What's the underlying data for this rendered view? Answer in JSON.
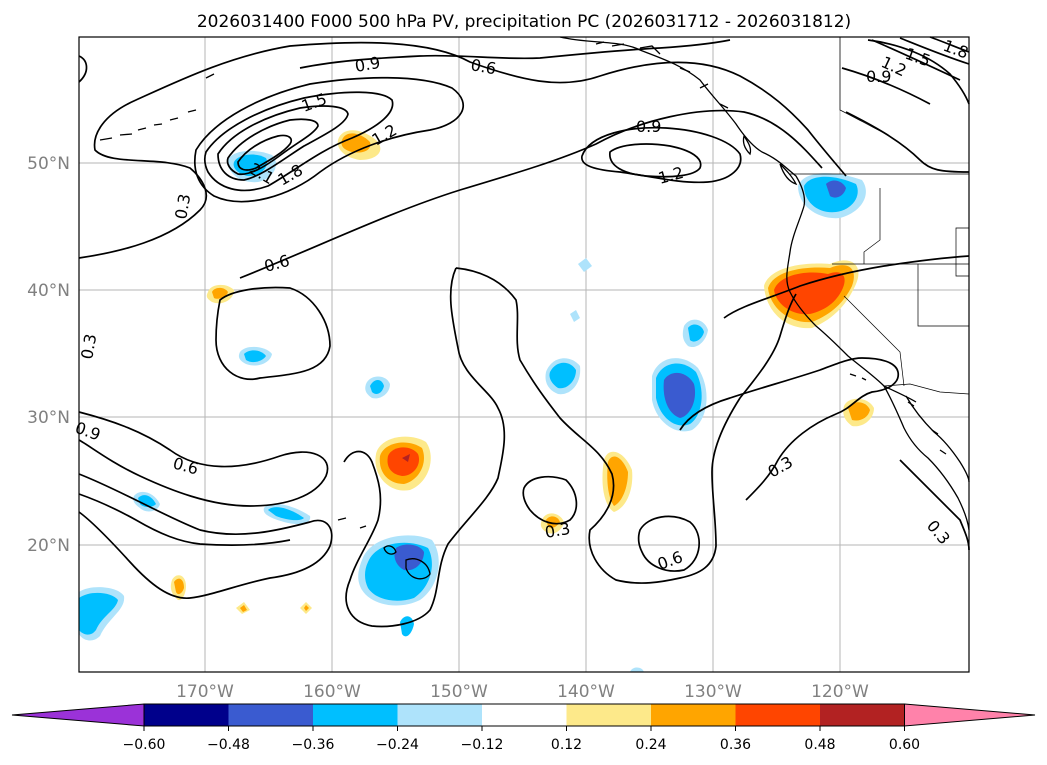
{
  "map": {
    "title": "2026031400 F000 500 hPa PV, precipitation PC (2026031712 - 2026031812)",
    "lat_labels": [
      "20°N",
      "30°N",
      "40°N",
      "50°N"
    ],
    "lon_labels": [
      "170°W",
      "160°W",
      "150°W",
      "140°W",
      "130°W",
      "120°W"
    ],
    "contour_labels": {
      "c03_a": "0.3",
      "c03_b": "0.3",
      "c03_c": "0.3",
      "c03_d": "0.3",
      "c03_e": "0.3",
      "c06_a": "0.6",
      "c06_b": "0.6",
      "c06_c": "0.6",
      "c06_d": "0.6",
      "c09_a": "0.9",
      "c09_b": "0.9",
      "c09_c": "0.9",
      "c09_d": "0.9",
      "c12_a": "1.2",
      "c12_b": "1.2",
      "c12_c": "1.2",
      "c15_a": "1.5",
      "c15_b": "1.5",
      "c18_a": "1.8",
      "c18_b": "1.8",
      "c21_a": "2.1"
    },
    "colors": {
      "neg_060_plus": "#9b32d8",
      "neg_048_060": "#00008b",
      "neg_036_048": "#3a5bd0",
      "neg_024_036": "#00bfff",
      "neg_012_024": "#aee3fb",
      "neutral": "#ffffff",
      "pos_012_024": "#fde98a",
      "pos_024_036": "#ffa500",
      "pos_036_048": "#ff4500",
      "pos_048_060": "#b22222",
      "pos_060_plus": "#ff82aa"
    }
  },
  "colorbar": {
    "ticks": [
      "−0.60",
      "−0.48",
      "−0.36",
      "−0.24",
      "−0.12",
      "0.12",
      "0.24",
      "0.36",
      "0.48",
      "0.60"
    ]
  }
}
